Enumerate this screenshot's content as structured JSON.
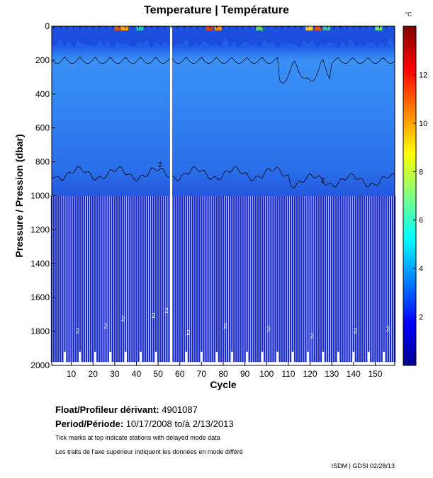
{
  "chart_data": {
    "type": "heatmap",
    "title": "Temperature | Température",
    "xlabel": "Cycle",
    "ylabel": "Pressure / Pression (dbar)",
    "xlim": [
      1,
      159
    ],
    "ylim": [
      2000,
      0
    ],
    "xticks": [
      10,
      20,
      30,
      40,
      50,
      60,
      70,
      80,
      90,
      100,
      110,
      120,
      130,
      140,
      150
    ],
    "yticks": [
      0,
      200,
      400,
      600,
      800,
      1000,
      1200,
      1400,
      1600,
      1800,
      2000
    ],
    "colorbar": {
      "unit": "°C",
      "range": [
        0,
        14
      ],
      "ticks": [
        2,
        4,
        6,
        8,
        10,
        12
      ],
      "colormap": "jet"
    },
    "contour_label": "2",
    "profiles": {
      "gap_cycle": 56,
      "deep_profile_depth": 1000,
      "full_depth_marker": "vertical white stripes below 1000 dbar between cycles"
    },
    "float_label": "Float/Profileur dérivant:",
    "float_id": "4901087",
    "period_label": "Period/Période:",
    "period_start": "10/17/2008",
    "period_sep": "to/à",
    "period_end": "2/13/2013",
    "note_en": "Tick marks at top indicate stations with delayed mode data",
    "note_fr": "Les traits de l'axe supérieur indiquent les données en mode différé",
    "credit": "ISDM | GDSI  02/28/13",
    "colors": {
      "deep": "#1a2bd0",
      "mid": "#2f7ef0",
      "shallow": "#3a8cf5"
    }
  }
}
